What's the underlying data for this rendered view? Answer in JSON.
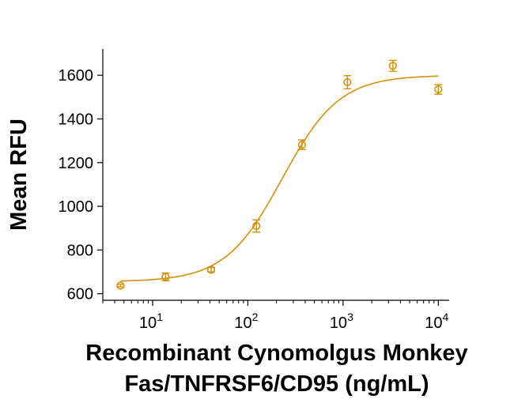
{
  "chart_data": {
    "type": "scatter",
    "title": "",
    "xlabel_lines": [
      "Recombinant Cynomolgus Monkey",
      "Fas/TNFRSF6/CD95 (ng/mL)"
    ],
    "ylabel": "Mean RFU",
    "xscale": "log",
    "xlim": [
      3,
      13000
    ],
    "ylim": [
      570,
      1720
    ],
    "yticks": [
      600,
      800,
      1000,
      1200,
      1400,
      1600
    ],
    "xticks": [
      {
        "base": "10",
        "exp": "1",
        "value": 10
      },
      {
        "base": "10",
        "exp": "2",
        "value": 100
      },
      {
        "base": "10",
        "exp": "3",
        "value": 1000
      },
      {
        "base": "10",
        "exp": "4",
        "value": 10000
      }
    ],
    "color": "#D4900C",
    "series": [
      {
        "name": "data",
        "x": [
          4.6,
          13.7,
          41.2,
          123,
          370,
          1111,
          3333,
          10000
        ],
        "y": [
          637,
          677,
          710,
          910,
          1282,
          1568,
          1643,
          1535
        ],
        "err": [
          6,
          18,
          10,
          28,
          22,
          30,
          25,
          22
        ]
      }
    ],
    "fit": {
      "type": "4PL",
      "bottom": 655,
      "top": 1600,
      "ec50": 230,
      "hill": 1.45,
      "x_range": [
        4.6,
        10000
      ]
    },
    "grid": false,
    "legend": "none"
  }
}
